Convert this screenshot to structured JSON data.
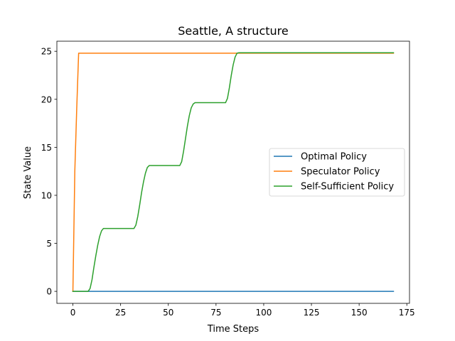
{
  "chart_data": {
    "type": "line",
    "title": "Seattle, A structure",
    "xlabel": "Time Steps",
    "ylabel": "State Value",
    "xlim": [
      -8.4,
      176.4
    ],
    "ylim": [
      -1.25,
      26.05
    ],
    "xticks": [
      0,
      25,
      50,
      75,
      100,
      125,
      150,
      175
    ],
    "yticks": [
      0,
      5,
      10,
      15,
      20,
      25
    ],
    "grid": false,
    "legend_position": "center-right",
    "series": [
      {
        "name": "Optimal Policy",
        "color": "#1f77b4",
        "x": [
          0,
          168
        ],
        "y": [
          0,
          0
        ]
      },
      {
        "name": "Speculator Policy",
        "color": "#ff7f0e",
        "x": [
          0,
          1,
          2,
          3,
          85,
          168
        ],
        "y": [
          0,
          12.5,
          19,
          24.8,
          24.8,
          24.8
        ]
      },
      {
        "name": "Self-Sufficient Policy",
        "color": "#2ca02c",
        "x": [
          0,
          8,
          9,
          10,
          11,
          12,
          13,
          14,
          15,
          16,
          17,
          32,
          33,
          34,
          35,
          36,
          37,
          38,
          39,
          40,
          41,
          56,
          57,
          58,
          59,
          60,
          61,
          62,
          63,
          64,
          65,
          80,
          81,
          82,
          83,
          84,
          85,
          86,
          87,
          168
        ],
        "y": [
          0,
          0,
          0.3,
          1.2,
          2.5,
          3.7,
          4.8,
          5.7,
          6.3,
          6.55,
          6.55,
          6.55,
          6.9,
          7.8,
          9.0,
          10.3,
          11.4,
          12.3,
          12.9,
          13.1,
          13.1,
          13.1,
          13.5,
          14.6,
          15.9,
          17.2,
          18.3,
          19.1,
          19.5,
          19.65,
          19.65,
          19.65,
          20.1,
          21.2,
          22.5,
          23.6,
          24.4,
          24.8,
          24.85,
          24.85
        ]
      }
    ]
  }
}
